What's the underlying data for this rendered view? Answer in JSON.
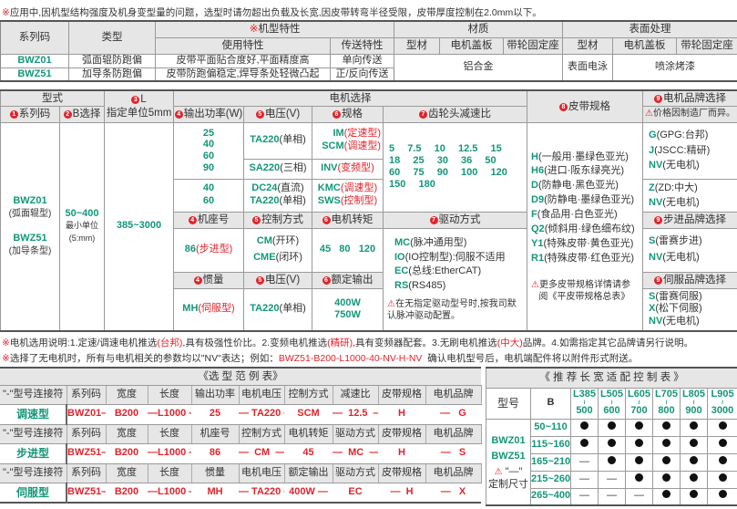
{
  "notes": {
    "top_mark": "※",
    "top": "应用中,因机型结构强度及机身变型量的问题，选型时请勿超出负载及长宽,因皮带转弯半径受限，皮带厚度控制在2.0mm以下。",
    "motor_mark": "※",
    "motor_a": "电机选用说明:1.定速/调速电机推选",
    "motor_b": "(台邦)",
    "motor_c": ",具有极强性价比。2.变频电机推选",
    "motor_d": "(精研)",
    "motor_e": ",具有变频器配套。3.无刷电机推选",
    "motor_f": "(中大)",
    "motor_g": "品牌。4.如需指定其它品牌请另行说明。",
    "nv_mark": "※",
    "nv_a": "选择了无电机时，所有与电机相关的参数均以\"NV\"表达；例如：",
    "nv_example": "BWZ51-B200-L1000-40-NV-H-NV",
    "nv_b": "  确认电机型号后，电机端配件将以附件形式附送。"
  },
  "spec_table": {
    "h_series": "系列码",
    "h_type": "类型",
    "h_feature_mark": "※",
    "h_feature": "机型特性",
    "h_material": "材质",
    "h_surface": "表面处理",
    "h_usage": "使用特性",
    "h_transfer": "传送特性",
    "h_profile": "型材",
    "h_cover": "电机盖板",
    "h_seat": "带轮固定座",
    "h_profile2": "型材",
    "h_cover2": "电机盖板",
    "h_seat2": "带轮固定座",
    "rows": [
      {
        "series": "BWZ01",
        "type": "弧面辊防跑偏",
        "usage": "皮带平面贴合度好,平面精度高",
        "transfer": "单向传送"
      },
      {
        "series": "BWZ51",
        "type": "加导条防跑偏",
        "usage": "皮带防跑偏稳定,焊导条处轻微凸起",
        "transfer": "正/反向传送"
      }
    ],
    "material": "铝合金",
    "surface_profile": "表面电泳",
    "surface_other": "喷涂烤漆"
  },
  "select_table": {
    "h_model": "型式",
    "h_L_num": "3",
    "h_L": "L",
    "h_L_sub": "指定单位5mm",
    "h_motor": "电机选择",
    "h_belt_num": "8",
    "h_belt": "皮带规格",
    "h_brand_num": "9",
    "h_brand": "电机品牌选择",
    "h_brand_warn": "价格因制造厂而异。",
    "h_series_num": "1",
    "h_series": "系列码",
    "h_B_num": "2",
    "h_B": "B选择",
    "h_power_num": "4",
    "h_power": "输出功率(W)",
    "h_volt_num": "5",
    "h_volt": "电压(V)",
    "h_spec_num": "6",
    "h_spec": "规格",
    "h_ratio_num": "7",
    "h_ratio": "齿轮头减速比",
    "series1": "BWZ01",
    "series1_sub": "(弧面辊型)",
    "series2": "BWZ51",
    "series2_sub": "(加导条型)",
    "B_range": "50~400",
    "B_sub1": "最小单位",
    "B_sub2": "(5:mm)",
    "L_range": "385~3000",
    "power_a": [
      "25",
      "40",
      "60",
      "90"
    ],
    "volt_a": "TA220",
    "volt_a_sub": "(单相)",
    "spec_a1": "IM",
    "spec_a1_sub": "(定速型)",
    "spec_a2": "SCM",
    "spec_a2_sub": "(调速型)",
    "volt_b": "SA220",
    "volt_b_sub": "(三相)",
    "spec_b": "INV",
    "spec_b_sub": "(变频型)",
    "power_c": [
      "40",
      "60"
    ],
    "volt_c1": "DC24",
    "volt_c1_sub": "(直流)",
    "volt_c2": "TA220",
    "volt_c2_sub": "(单相)",
    "spec_c1": "KMC",
    "spec_c1_sub": "(调速型)",
    "spec_c2": "SWS",
    "spec_c2_sub": "(控制型)",
    "ratios": [
      "5  7.5  10  12.5  15",
      "18  25  30  36  50",
      "60  75  90  100  120",
      "150  180"
    ],
    "brand_a": [
      {
        "code": "G",
        "desc": "(GPG:台邦)"
      },
      {
        "code": "J",
        "desc": "(JSCC:精研)"
      },
      {
        "code": "NV",
        "desc": "(无电机)"
      }
    ],
    "brand_b": [
      {
        "code": "Z",
        "desc": "(ZD:中大)"
      },
      {
        "code": "NV",
        "desc": "(无电机)"
      }
    ],
    "h_frame": "机座号",
    "h_control": "控制方式",
    "h_torque": "电机转矩",
    "h_drive": "驱动方式",
    "h_step_brand": "步进品牌选择",
    "frame": "86",
    "frame_sub": "(步进型)",
    "control1": "CM",
    "control1_sub": "(开环)",
    "control2": "CME",
    "control2_sub": "(闭环)",
    "torque": "45   80   120",
    "drive": [
      {
        "code": "MC",
        "desc": "(脉冲通用型)"
      },
      {
        "code": "IO",
        "desc": "(IO控制型):伺服不适用"
      },
      {
        "code": "EC",
        "desc": "(总线:EtherCAT)"
      },
      {
        "code": "RS",
        "desc": "(RS485)"
      }
    ],
    "drive_note1": "在无指定驱动型号时,按我司默",
    "drive_note2": "认脉冲驱动配置。",
    "step_brand": [
      {
        "code": "S",
        "desc": "(雷赛步进)"
      },
      {
        "code": "NV",
        "desc": "(无电机)"
      }
    ],
    "h_inertia": "惯量",
    "h_volt2": "电压(V)",
    "h_rated": "额定输出",
    "h_servo_brand": "伺服品牌选择",
    "inertia": "MH",
    "inertia_sub": "(伺服型)",
    "volt_s": "TA220",
    "volt_s_sub": "(单相)",
    "rated": [
      "400W",
      "750W"
    ],
    "servo_brand": [
      {
        "code": "S",
        "desc": "(雷赛伺服)"
      },
      {
        "code": "X",
        "desc": "(松下伺服)"
      },
      {
        "code": "NV",
        "desc": "(无电机)"
      }
    ],
    "belts": [
      {
        "code": "H",
        "desc": "(一般用·墨绿色亚光)"
      },
      {
        "code": "H6",
        "desc": "(进口·阪东绿亮光)"
      },
      {
        "code": "D",
        "desc": "(防静电·黑色亚光)"
      },
      {
        "code": "D9",
        "desc": "(防静电·墨绿色亚光)"
      },
      {
        "code": "F",
        "desc": "(食品用·白色亚光)"
      },
      {
        "code": "Q2",
        "desc": "(倾斜用·绿色细布纹)"
      },
      {
        "code": "Y1",
        "desc": "(特殊皮带·黄色亚光)"
      },
      {
        "code": "R1",
        "desc": "(特殊皮带·红色亚光)"
      }
    ],
    "belt_note1": "更多皮带规格详情请参",
    "belt_note2": "阅《平皮带规格总表》"
  },
  "example_table": {
    "title": "《选 型 范 例 表》",
    "groups": [
      {
        "header": [
          "\"-\"型号连接符",
          "系列码",
          "宽度",
          "长度",
          "输出功率",
          "电机电压",
          "控制方式",
          "减速比",
          "皮带规格",
          "电机品牌"
        ],
        "label": "调速型",
        "values": [
          "BWZ01—",
          "B200",
          "—L1000 —",
          "25",
          "— TA220 —",
          "SCM",
          "—  12.5  —",
          "H",
          "—   G"
        ]
      },
      {
        "header": [
          "\"-\"型号连接符",
          "系列码",
          "宽度",
          "长度",
          "机座号",
          "控制方式",
          "电机转矩",
          "驱动方式",
          "皮带规格",
          "电机品牌"
        ],
        "label": "步进型",
        "values": [
          "BWZ51—",
          "B200",
          "—L1000 —",
          "86",
          "—  CM  —",
          "45",
          "—  MC  —",
          "H",
          "—   S"
        ]
      },
      {
        "header": [
          "\"-\"型号连接符",
          "系列码",
          "宽度",
          "长度",
          "惯量",
          "电机电压",
          "额定输出",
          "驱动方式",
          "皮带规格",
          "电机品牌"
        ],
        "label": "伺服型",
        "values": [
          "BWZ51—",
          "B200",
          "—L1000 —",
          "MH",
          "— TA220 —",
          "400W —",
          "EC",
          "—  H",
          "—   X"
        ]
      }
    ]
  },
  "recommend_table": {
    "title": "《 推 荐 长 宽 适 配 控 制 表 》",
    "h_model": "型号",
    "h_B": "B",
    "length_cols": [
      [
        "L385",
        "500"
      ],
      [
        "L505",
        "600"
      ],
      [
        "L605",
        "700"
      ],
      [
        "L705",
        "800"
      ],
      [
        "L805",
        "900"
      ],
      [
        "L905",
        "3000"
      ]
    ],
    "models": [
      "BWZ01",
      "BWZ51"
    ],
    "custom_mark": "\"—\"",
    "custom_label": "定制尺寸",
    "rows": [
      {
        "B": "50~110",
        "cells": [
          1,
          1,
          1,
          1,
          1,
          1
        ]
      },
      {
        "B": "115~160",
        "cells": [
          1,
          1,
          1,
          1,
          1,
          1
        ]
      },
      {
        "B": "165~210",
        "cells": [
          0,
          1,
          1,
          1,
          1,
          1
        ]
      },
      {
        "B": "215~260",
        "cells": [
          0,
          0,
          1,
          1,
          1,
          1
        ]
      },
      {
        "B": "265~400",
        "cells": [
          0,
          0,
          0,
          1,
          1,
          1
        ]
      }
    ]
  },
  "colors": {
    "green": "#13977a",
    "red": "#e0242b",
    "header_bg": "#e6e6e6"
  }
}
